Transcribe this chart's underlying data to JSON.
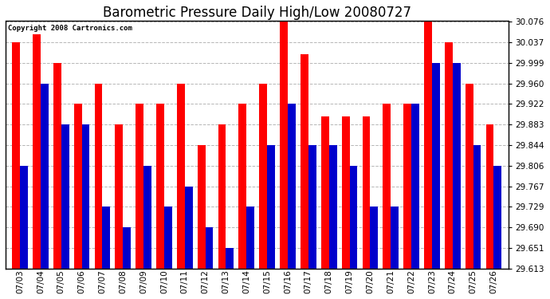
{
  "title": "Barometric Pressure Daily High/Low 20080727",
  "copyright": "Copyright 2008 Cartronics.com",
  "dates": [
    "07/03",
    "07/04",
    "07/05",
    "07/06",
    "07/07",
    "07/08",
    "07/09",
    "07/10",
    "07/11",
    "07/12",
    "07/13",
    "07/14",
    "07/15",
    "07/16",
    "07/17",
    "07/18",
    "07/19",
    "07/20",
    "07/21",
    "07/22",
    "07/23",
    "07/24",
    "07/25",
    "07/26"
  ],
  "highs": [
    30.037,
    30.053,
    29.999,
    29.922,
    29.96,
    29.883,
    29.922,
    29.922,
    29.96,
    29.844,
    29.883,
    29.922,
    29.96,
    30.076,
    30.015,
    29.899,
    29.899,
    29.899,
    29.922,
    29.922,
    30.076,
    30.037,
    29.96,
    29.883
  ],
  "lows": [
    29.806,
    29.96,
    29.883,
    29.883,
    29.729,
    29.69,
    29.806,
    29.729,
    29.767,
    29.69,
    29.651,
    29.729,
    29.844,
    29.922,
    29.844,
    29.844,
    29.806,
    29.729,
    29.729,
    29.922,
    29.999,
    29.999,
    29.844,
    29.806
  ],
  "ymin": 29.613,
  "ymax": 30.076,
  "yticks": [
    29.613,
    29.651,
    29.69,
    29.729,
    29.767,
    29.806,
    29.844,
    29.883,
    29.922,
    29.96,
    29.999,
    30.037,
    30.076
  ],
  "high_color": "#ff0000",
  "low_color": "#0000cc",
  "bg_color": "#ffffff",
  "grid_color": "#aaaaaa",
  "bar_width": 0.38,
  "title_fontsize": 12,
  "tick_fontsize": 7.5
}
